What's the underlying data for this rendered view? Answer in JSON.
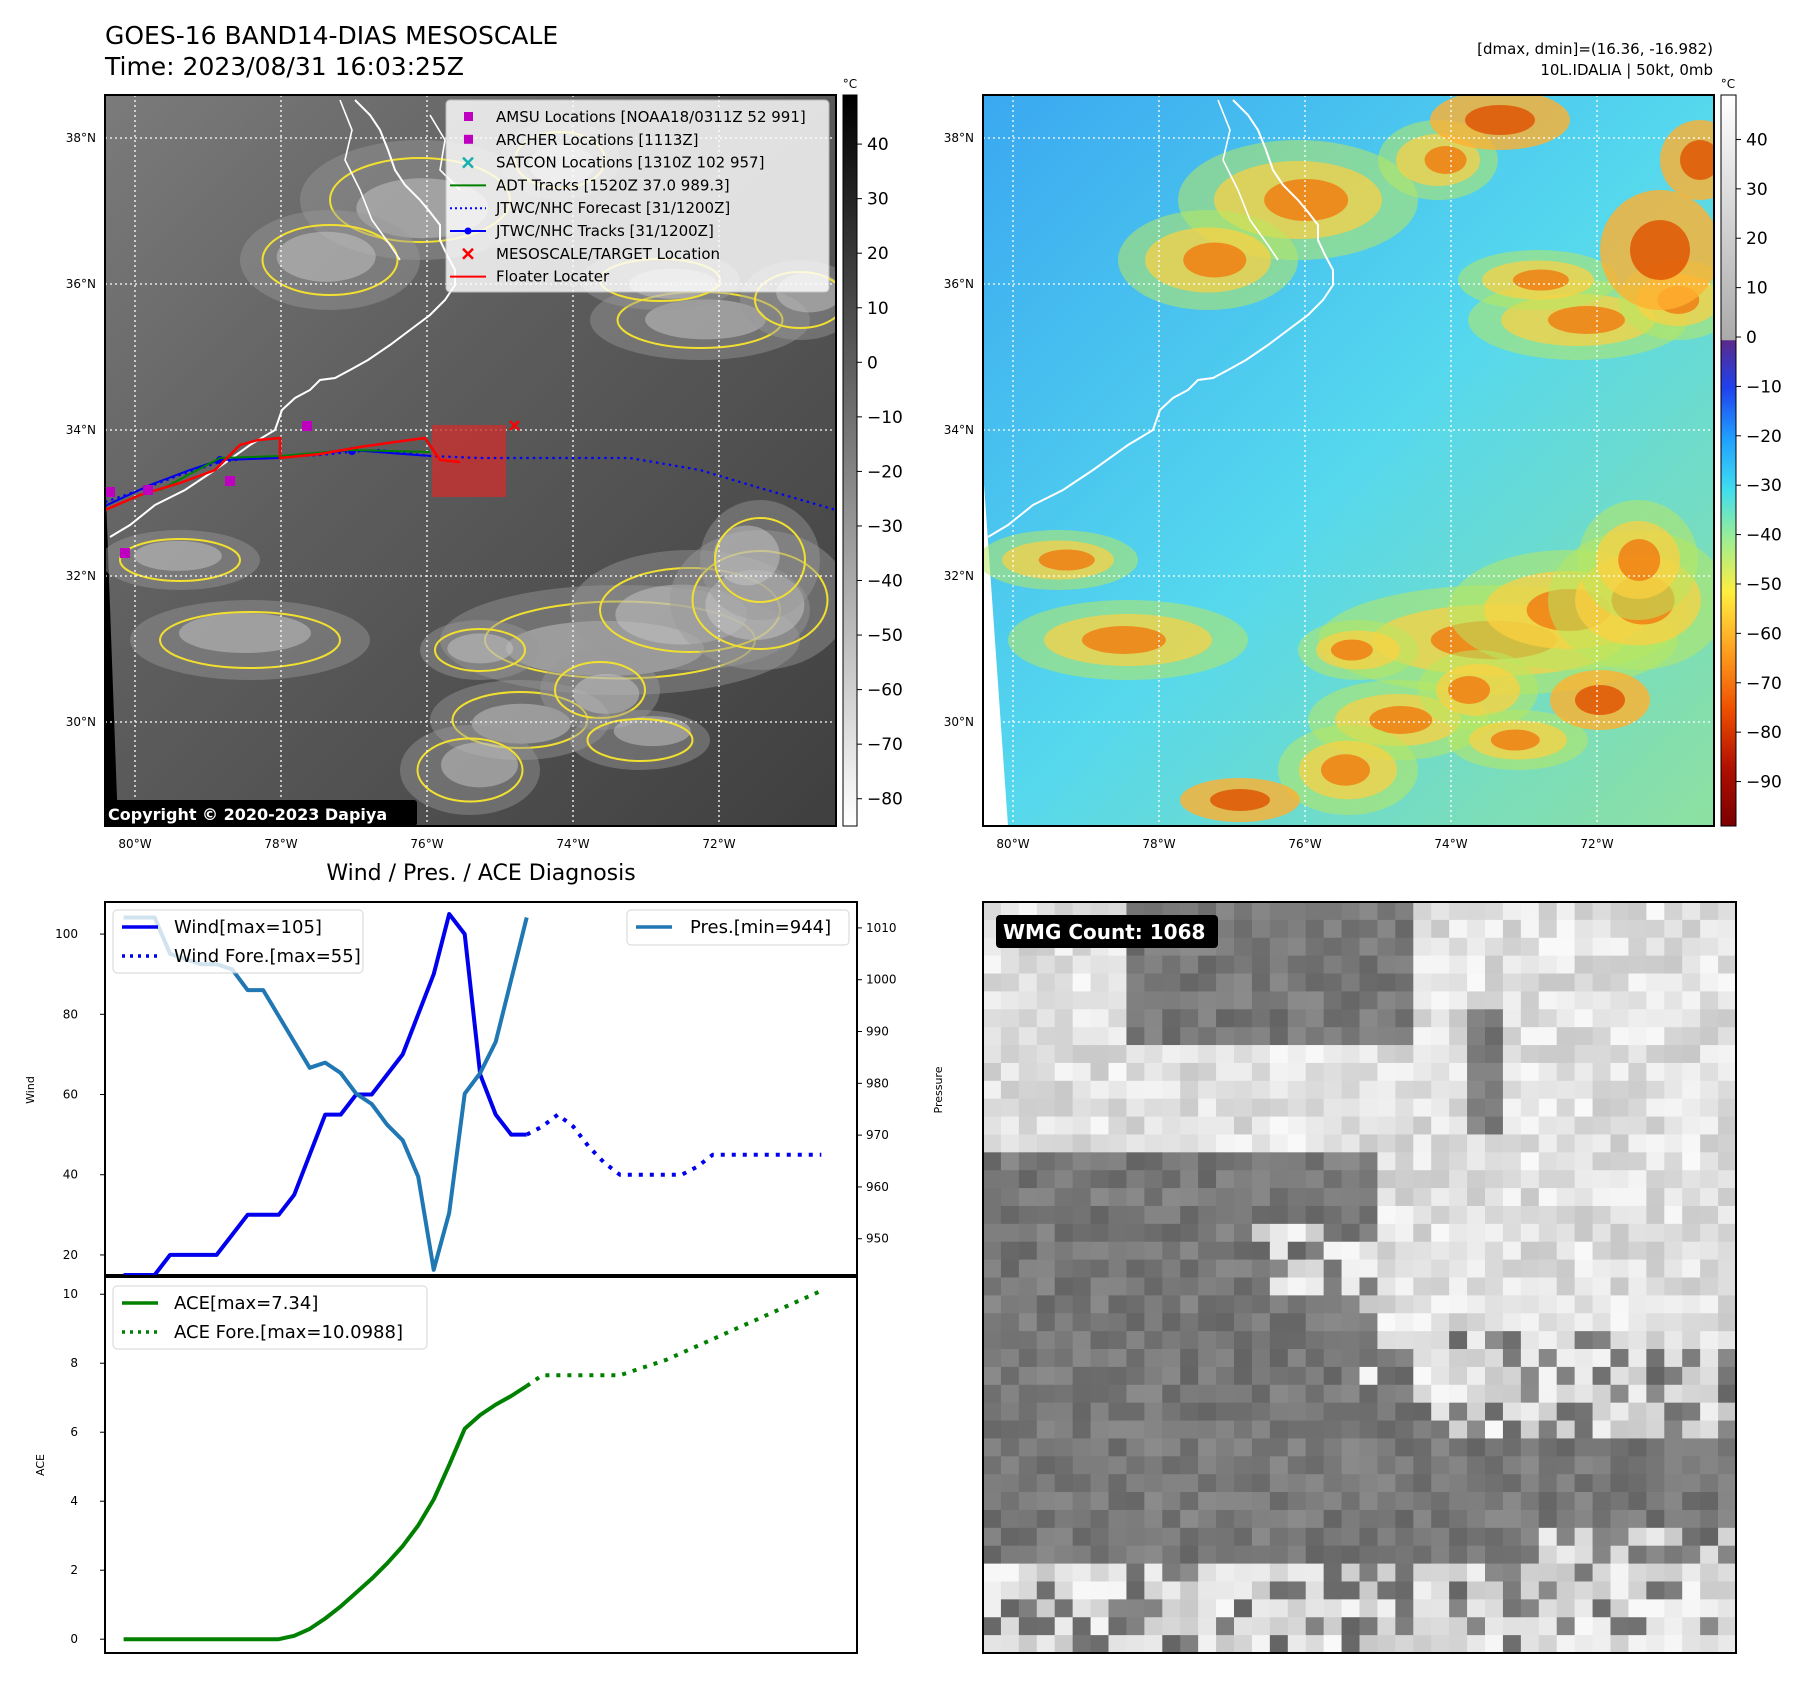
{
  "header": {
    "title_line1": "GOES-16 BAND14-DIAS MESOSCALE",
    "title_line2": "Time: 2023/08/31 16:03:25Z",
    "right_line1": "[dmax, dmin]=(16.36, -16.982)",
    "right_line2": "10L.IDALIA | 50kt, 0mb"
  },
  "copyright": "Copyright © 2020-2023 Dapiya",
  "units": {
    "celsius": "°C"
  },
  "lat_labels": [
    "38°N",
    "36°N",
    "34°N",
    "32°N",
    "30°N"
  ],
  "lon_labels": [
    "80°W",
    "78°W",
    "76°W",
    "74°W",
    "72°W"
  ],
  "colorbar_left": {
    "ticks": [
      "40",
      "30",
      "20",
      "10",
      "0",
      "−10",
      "−20",
      "−30",
      "−40",
      "−50",
      "−60",
      "−70",
      "−80"
    ],
    "range": [
      -85,
      49
    ]
  },
  "colorbar_right": {
    "ticks": [
      "40",
      "30",
      "20",
      "10",
      "0",
      "−10",
      "−20",
      "−30",
      "−40",
      "−50",
      "−60",
      "−70",
      "−80",
      "−90"
    ],
    "range": [
      -99,
      49
    ]
  },
  "map_legend": [
    {
      "label": "AMSU Locations [NOAA18/0311Z 52 991]",
      "marker": "square",
      "color": "#c000c0"
    },
    {
      "label": "ARCHER Locations [1113Z]",
      "marker": "square",
      "color": "#c000c0"
    },
    {
      "label": "SATCON Locations [1310Z 102 957]",
      "marker": "x",
      "color": "#17b0b0"
    },
    {
      "label": "ADT Tracks [1520Z 37.0 989.3]",
      "marker": "line",
      "color": "#008000"
    },
    {
      "label": "JTWC/NHC Forecast [31/1200Z]",
      "marker": "dotted",
      "color": "#0000ff"
    },
    {
      "label": "JTWC/NHC Tracks [31/1200Z]",
      "marker": "line-dot",
      "color": "#0000ff"
    },
    {
      "label": "MESOSCALE/TARGET Location",
      "marker": "x",
      "color": "#ff0000"
    },
    {
      "label": "Floater Locater",
      "marker": "line",
      "color": "#ff0000"
    }
  ],
  "diag_title": "Wind / Pres. / ACE Diagnosis",
  "wmg_label": "WMG Count: 1068",
  "chart_data": [
    {
      "type": "line",
      "title": "Wind / Pres. / ACE Diagnosis",
      "ylabel": "Wind",
      "ylabel_right": "Pressure",
      "ylim": [
        15,
        108
      ],
      "ylim_right": [
        943,
        1015
      ],
      "yticks": [
        20,
        40,
        60,
        80,
        100
      ],
      "yticks_right": [
        950,
        960,
        970,
        980,
        990,
        1000,
        1010
      ],
      "series": [
        {
          "name": "Wind[max=105]",
          "axis": "left",
          "color": "#0000ee",
          "style": "solid",
          "x": [
            0,
            1,
            2,
            3,
            4,
            5,
            6,
            7,
            8,
            9,
            10,
            11,
            12,
            13,
            14,
            15,
            16,
            17,
            18,
            19,
            20,
            21,
            22,
            23,
            24,
            25,
            26
          ],
          "values": [
            15,
            15,
            15,
            20,
            20,
            20,
            20,
            25,
            30,
            30,
            30,
            35,
            45,
            55,
            55,
            60,
            60,
            65,
            70,
            80,
            90,
            105,
            100,
            65,
            55,
            50,
            50
          ]
        },
        {
          "name": "Wind Fore.[max=55]",
          "axis": "left",
          "color": "#0000ee",
          "style": "dotted",
          "x": [
            26,
            27,
            28,
            29,
            30,
            31,
            32,
            33,
            34,
            35,
            36,
            37,
            38,
            39,
            40,
            41,
            42,
            43,
            44,
            45
          ],
          "values": [
            50,
            52,
            55,
            52,
            47,
            43,
            40,
            40,
            40,
            40,
            40,
            42,
            45,
            45,
            45,
            45,
            45,
            45,
            45,
            45
          ]
        },
        {
          "name": "Pres.[min=944]",
          "axis": "right",
          "color": "#1f77b4",
          "style": "solid",
          "x": [
            0,
            1,
            2,
            3,
            4,
            5,
            6,
            7,
            8,
            9,
            10,
            11,
            12,
            13,
            14,
            15,
            16,
            17,
            18,
            19,
            20,
            21,
            22,
            23,
            24,
            25,
            26
          ],
          "values": [
            1012,
            1012,
            1012,
            1005,
            1004,
            1003,
            1003,
            1002,
            998,
            998,
            993,
            988,
            983,
            984,
            982,
            978,
            976,
            972,
            969,
            962,
            944,
            955,
            978,
            982,
            988,
            1000,
            1012
          ]
        }
      ]
    },
    {
      "type": "line",
      "ylabel": "ACE",
      "ylim": [
        -0.4,
        10.5
      ],
      "yticks": [
        0,
        2,
        4,
        6,
        8,
        10
      ],
      "series": [
        {
          "name": "ACE[max=7.34]",
          "color": "#008000",
          "style": "solid",
          "x": [
            0,
            1,
            2,
            3,
            4,
            5,
            6,
            7,
            8,
            9,
            10,
            11,
            12,
            13,
            14,
            15,
            16,
            17,
            18,
            19,
            20,
            21,
            22,
            23,
            24,
            25,
            26
          ],
          "values": [
            0,
            0,
            0,
            0,
            0,
            0,
            0,
            0,
            0,
            0,
            0,
            0.1,
            0.3,
            0.6,
            0.95,
            1.35,
            1.75,
            2.2,
            2.7,
            3.3,
            4.05,
            5.05,
            6.1,
            6.5,
            6.8,
            7.05,
            7.34
          ]
        },
        {
          "name": "ACE Fore.[max=10.0988]",
          "color": "#008000",
          "style": "dotted",
          "x": [
            26,
            27,
            28,
            29,
            30,
            31,
            32,
            33,
            34,
            35,
            36,
            37,
            38,
            39,
            40,
            41,
            42,
            43,
            44,
            45
          ],
          "values": [
            7.34,
            7.65,
            7.65,
            7.65,
            7.65,
            7.65,
            7.65,
            7.8,
            7.95,
            8.1,
            8.3,
            8.5,
            8.7,
            8.9,
            9.1,
            9.3,
            9.5,
            9.7,
            9.9,
            10.0988
          ]
        }
      ]
    }
  ]
}
